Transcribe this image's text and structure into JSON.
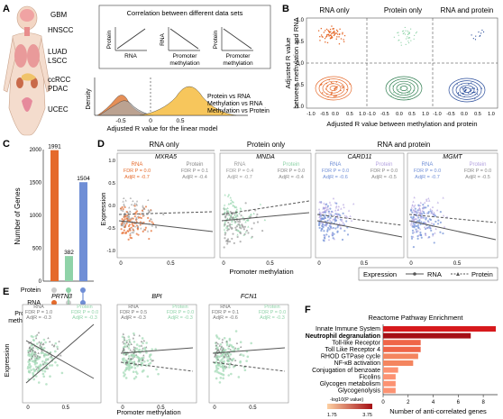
{
  "panels": {
    "a": "A",
    "b": "B",
    "c": "C",
    "d": "D",
    "e": "E",
    "f": "F"
  },
  "a": {
    "cancers": [
      "GBM",
      "HNSCC",
      "LUAD",
      "LSCC",
      "ccRCC",
      "PDAC",
      "UCEC"
    ],
    "corr_title": "Correlation between different data sets",
    "box1_x": "RNA",
    "box1_y": "Protein",
    "box2_x1": "Promoter",
    "box2_x2": "methylation",
    "box2_y": "RNA",
    "box3_x1": "Promoter",
    "box3_x2": "methylation",
    "box3_y": "Protein",
    "density_label": "Density",
    "xlabel": "Adjusted R value for the linear model",
    "ticks": [
      "-0.5",
      "0",
      "0.5"
    ],
    "legend": [
      "Protein vs RNA",
      "Methylation vs RNA",
      "Methylation vs Protein"
    ],
    "colors": {
      "protein_rna": "#f6c04a",
      "meth_rna": "#e07b39",
      "meth_protein": "#a9a9a9"
    }
  },
  "b": {
    "titles": [
      "RNA only",
      "Protein only",
      "RNA and protein"
    ],
    "ylabel1": "Adjusted R value",
    "ylabel2": "between methylation and RNA",
    "xlabel": "Adjusted R value between methylation and protein",
    "yticks": [
      "1.0",
      "0.5",
      "0.0",
      "-0.5",
      "-1.0"
    ],
    "xticks": [
      "-1.0",
      "-0.5",
      "0.0",
      "0.5",
      "1.0"
    ],
    "colors": {
      "rna": "#e56a2b",
      "protein": "#2e7d4f",
      "both": "#2a4d9b"
    }
  },
  "c": {
    "ylabel": "Number of Genes",
    "bars": [
      {
        "label": "1991",
        "value": 1991,
        "color": "#e56a2b"
      },
      {
        "label": "382",
        "value": 382,
        "color": "#8fd3a8"
      },
      {
        "label": "1504",
        "value": 1504,
        "color": "#6f8ed6"
      }
    ],
    "yticks": [
      "0",
      "500",
      "1000",
      "1500",
      "2000"
    ],
    "rows": [
      "Protein",
      "RNA",
      "Promoter",
      "methylation"
    ]
  },
  "d": {
    "headers": [
      "RNA only",
      "Protein only",
      "RNA and protein"
    ],
    "genes": [
      "MXRA5",
      "MNDA",
      "CARD11",
      "MGMT"
    ],
    "stats": [
      {
        "l1": "RNA",
        "l2": "FDR P = 0.0",
        "l3": "AdjR = -0.7",
        "r1": "Protein",
        "r2": "FDR P = 0.1",
        "r3": "AdjR = -0.4"
      },
      {
        "l1": "RNA",
        "l2": "FDR P = 0.4",
        "l3": "AdjR = -0.7",
        "r1": "Protein",
        "r2": "FDR P = 0.0",
        "r3": "AdjR = -0.4"
      },
      {
        "l1": "RNA",
        "l2": "FDR P = 0.0",
        "l3": "AdjR = -0.6",
        "r1": "Protein",
        "r2": "FDR P = 0.0",
        "r3": "AdjR = -0.5"
      },
      {
        "l1": "RNA",
        "l2": "FDR P = 0.0",
        "l3": "AdjR = -0.7",
        "r1": "Protein",
        "r2": "FDR P = 0.0",
        "r3": "AdjR = -0.5"
      }
    ],
    "ylabel": "Expression",
    "yticks": [
      "1.0",
      "0.5",
      "0.0",
      "-0.5",
      "-1.0"
    ],
    "xticks": [
      "0",
      "0.5"
    ],
    "xlabel": "Promoter methylation",
    "legend_title": "Expression",
    "legend_rna": "RNA",
    "legend_protein": "Protein"
  },
  "e": {
    "genes": [
      "PRTN3",
      "BPI",
      "FCN1"
    ],
    "stats": [
      {
        "l1": "RNA",
        "l2": "FDR P = 1.0",
        "l3": "AdjR = -0.3",
        "r1": "Protein",
        "r2": "FDR P = 0.0",
        "r3": "AdjR = -0.3"
      },
      {
        "l1": "RNA",
        "l2": "FDR P = 0.5",
        "l3": "AdjR = -0.3",
        "r1": "Protein",
        "r2": "FDR P = 0.0",
        "r3": "AdjR = -0.3"
      },
      {
        "l1": "RNA",
        "l2": "FDR P = 0.1",
        "l3": "AdjR = -0.6",
        "r1": "Protein",
        "r2": "FDR P = 0.0",
        "r3": "AdjR = -0.3"
      }
    ],
    "ylabel": "Expression",
    "xticks": [
      "0",
      "0.5"
    ],
    "xlabel": "Promoter methylation"
  },
  "chart_data": [
    {
      "type": "bar",
      "categories": [
        "RNA only",
        "Protein only",
        "RNA and protein"
      ],
      "values": [
        1991,
        382,
        1504
      ],
      "ylabel": "Number of Genes",
      "ylim": [
        0,
        2000
      ]
    },
    {
      "type": "bar",
      "title": "Reactome Pathway Enrichment",
      "xlabel": "Number of anti-correlated genes",
      "categories": [
        "Innate Immune System",
        "Neutrophil degranulation",
        "Toll-like Receptor",
        "Toll Like Receptor 4",
        "RHOD GTPase cycle",
        "NF-κB activation",
        "Conjugation of benzoate",
        "Ficolins",
        "Glycogen metabolism",
        "Glycogenolysis"
      ],
      "values": [
        9,
        7,
        3,
        3,
        2.8,
        2.4,
        1.2,
        1,
        1,
        1
      ],
      "xlim": [
        0,
        9
      ],
      "xticks": [
        "0",
        "2",
        "4",
        "6",
        "8"
      ],
      "legend_title": "-log10(P value)",
      "legend_range": [
        "1.75",
        "3.75"
      ],
      "colors": [
        "#d7191c",
        "#a50f15",
        "#ef6548",
        "#ef6548",
        "#f4855f",
        "#f4855f",
        "#fc9272",
        "#fc9272",
        "#fc9272",
        "#fc9272"
      ],
      "bold": [
        false,
        true,
        false,
        false,
        false,
        false,
        false,
        false,
        false,
        false
      ]
    }
  ]
}
